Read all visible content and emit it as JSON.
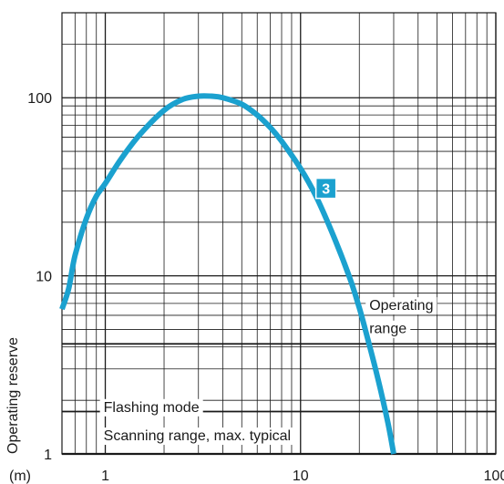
{
  "chart_data": {
    "type": "line",
    "x_scale": "log",
    "y_scale": "log",
    "xlim": [
      0.6,
      100
    ],
    "ylim": [
      1,
      300
    ],
    "x_unit": "(m)",
    "x_ticks": [
      {
        "value": 1,
        "label": "1"
      },
      {
        "value": 10,
        "label": "10"
      },
      {
        "value": 100,
        "label": "100"
      }
    ],
    "y_ticks": [
      {
        "value": 1,
        "label": "1"
      },
      {
        "value": 10,
        "label": "10"
      },
      {
        "value": 100,
        "label": "100"
      }
    ],
    "ylabel": "Operating reserve",
    "grid": true,
    "series": [
      {
        "color": "#1ba1cf",
        "x": [
          0.6,
          0.65,
          0.7,
          0.8,
          0.9,
          1.0,
          1.2,
          1.5,
          2.0,
          2.5,
          3.0,
          3.5,
          4.0,
          5.0,
          6.0,
          7.0,
          8.0,
          10.0,
          12.0,
          15.0,
          18.0,
          20.0,
          22.0,
          25.0,
          28.0,
          30.0
        ],
        "y": [
          6.5,
          8.5,
          13,
          21,
          28,
          33,
          45,
          62,
          85,
          98,
          102,
          102,
          100,
          92,
          80,
          68,
          57,
          40,
          28,
          16,
          9.5,
          6.6,
          4.5,
          2.6,
          1.5,
          1.0
        ]
      }
    ],
    "annotations": [
      {
        "text": "3",
        "type": "badge",
        "color": "#1ba1cf",
        "x": 13.5,
        "y": 31
      },
      {
        "text": "Operating",
        "x": 22.5,
        "y": 6.9
      },
      {
        "text": "range",
        "x": 22.5,
        "y": 5.1
      },
      {
        "text": "Flashing mode",
        "x": 0.98,
        "y": 1.85
      },
      {
        "text": "Scanning range, max. typical",
        "x": 0.98,
        "y": 1.28
      }
    ],
    "reference_lines": [
      {
        "axis": "y",
        "value": 4.15
      },
      {
        "axis": "y",
        "value": 1.73
      }
    ]
  }
}
